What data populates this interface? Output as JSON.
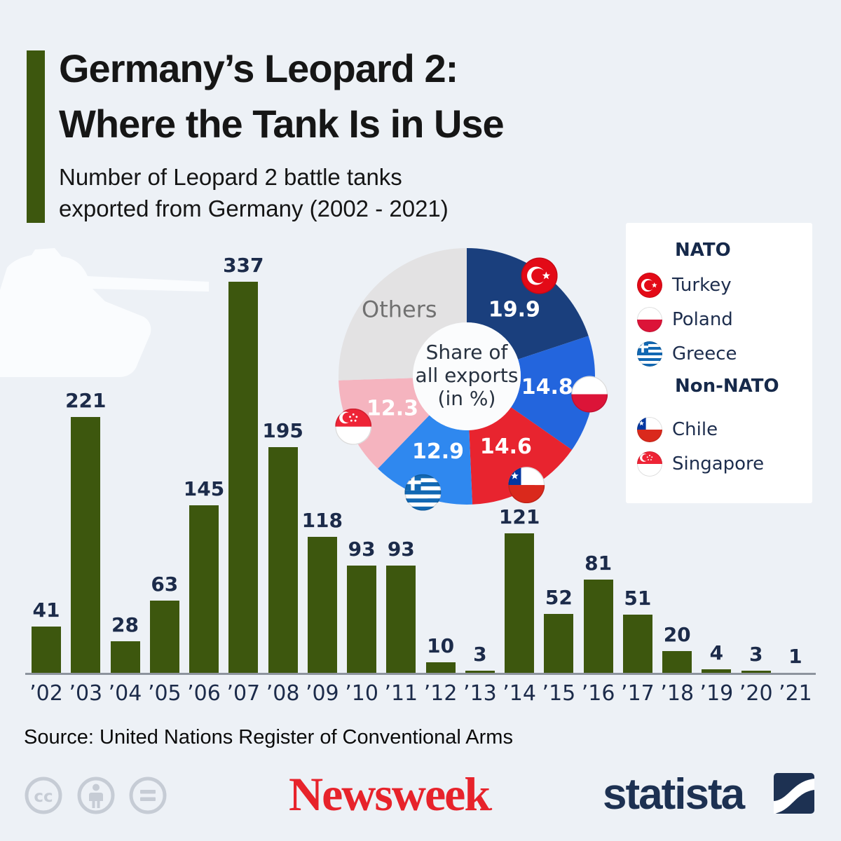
{
  "header": {
    "title_line1": "Germany’s Leopard 2:",
    "title_line2": "Where the Tank Is in Use",
    "subtitle_line1": "Number of Leopard 2 battle tanks",
    "subtitle_line2": "exported from Germany (2002 - 2021)"
  },
  "chart_data": [
    {
      "type": "bar",
      "title": "Number of Leopard 2 battle tanks exported from Germany (2002-2021)",
      "categories": [
        "’02",
        "’03",
        "’04",
        "’05",
        "’06",
        "’07",
        "’08",
        "’09",
        "’10",
        "’11",
        "’12",
        "’13",
        "’14",
        "’15",
        "’16",
        "’17",
        "’18",
        "’19",
        "’20",
        "’21"
      ],
      "values": [
        41,
        221,
        28,
        63,
        145,
        337,
        195,
        118,
        93,
        93,
        10,
        3,
        121,
        52,
        81,
        51,
        20,
        4,
        3,
        1
      ],
      "bar_color": "#3d570e",
      "ylim": [
        0,
        337
      ],
      "grid": false,
      "value_labels": true
    },
    {
      "type": "pie",
      "title": "Share of all exports (in %)",
      "center_label_lines": [
        "Share of",
        "all exports",
        "(in %)"
      ],
      "slices": [
        {
          "name": "Turkey",
          "value": 19.9,
          "color": "#1a3f7d",
          "flag": "turkey"
        },
        {
          "name": "Poland",
          "value": 14.8,
          "color": "#2365dd",
          "flag": "poland"
        },
        {
          "name": "Chile",
          "value": 14.6,
          "color": "#e8242f",
          "flag": "chile"
        },
        {
          "name": "Greece",
          "value": 12.9,
          "color": "#2f88ef",
          "flag": "greece"
        },
        {
          "name": "Singapore",
          "value": 12.3,
          "color": "#f5b4bf",
          "flag": "singapore"
        },
        {
          "name": "Others",
          "value": 25.5,
          "color": "#e3e2e3",
          "label": "Others"
        }
      ],
      "legend_position": "right"
    }
  ],
  "legend": {
    "nato_header": "NATO",
    "non_nato_header": "Non-NATO",
    "nato": [
      {
        "label": "Turkey",
        "flag": "turkey"
      },
      {
        "label": "Poland",
        "flag": "poland"
      },
      {
        "label": "Greece",
        "flag": "greece"
      }
    ],
    "non_nato": [
      {
        "label": "Chile",
        "flag": "chile"
      },
      {
        "label": "Singapore",
        "flag": "singapore"
      }
    ]
  },
  "footer": {
    "source": "Source: United Nations Register of Conventional Arms",
    "cc_text": "cc",
    "newsweek_label": "Newsweek",
    "newsweek_mark": ".",
    "statista_label": "statista"
  },
  "colors": {
    "background": "#edf1f6",
    "bar_green": "#3d570e",
    "label_navy": "#1c2b4a",
    "axis_gray": "#8d949d",
    "newsweek_red": "#e7232b",
    "statista_navy": "#1d3152",
    "cc_gray": "#c6ccd5",
    "donut_center": "#fbfcfd"
  }
}
